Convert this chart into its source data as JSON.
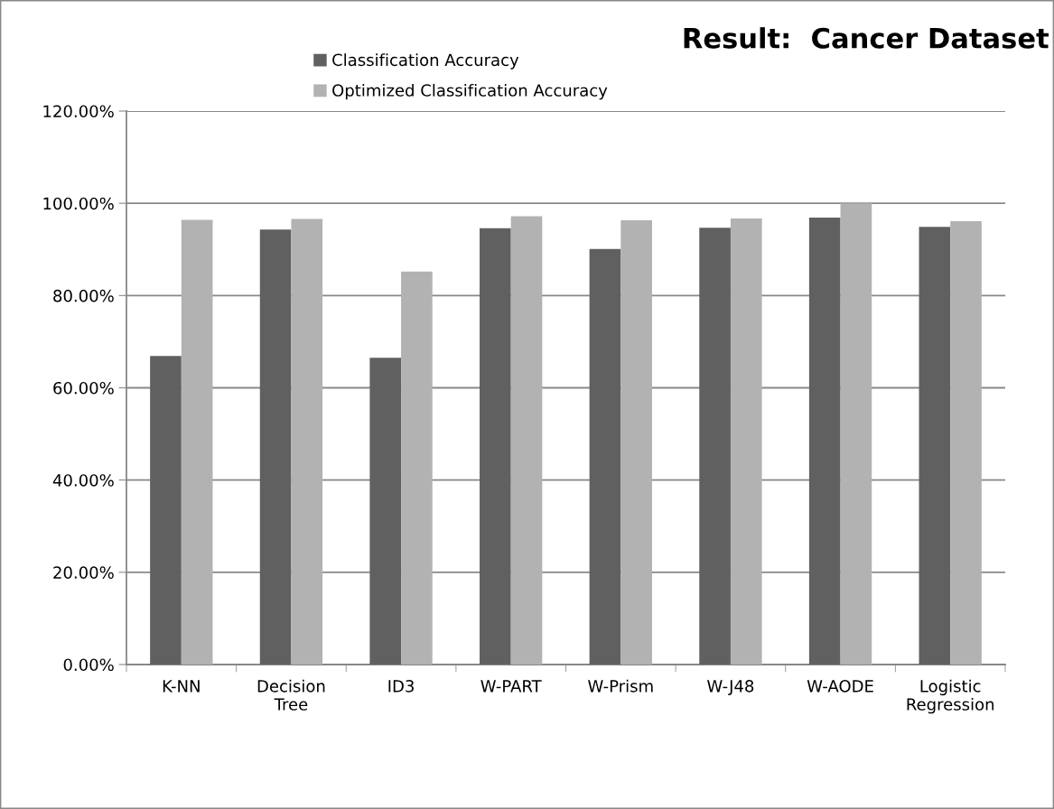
{
  "chart_data": {
    "type": "bar",
    "title": "Result:  Cancer Dataset",
    "categories": [
      "K-NN",
      "Decision\nTree",
      "ID3",
      "W-PART",
      "W-Prism",
      "W-J48",
      "W-AODE",
      "Logistic\nRegression"
    ],
    "series": [
      {
        "name": "Classification Accuracy",
        "color": "#606060",
        "values": [
          66.9,
          94.3,
          66.5,
          94.6,
          90.1,
          94.7,
          96.9,
          94.9
        ]
      },
      {
        "name": "Optimized Classification Accuracy",
        "color": "#b2b2b2",
        "values": [
          96.4,
          96.6,
          85.2,
          97.2,
          96.3,
          96.7,
          100.0,
          96.1
        ]
      }
    ],
    "ylim": [
      0,
      120
    ],
    "yticks": [
      {
        "value": 0,
        "label": "0.00%"
      },
      {
        "value": 20,
        "label": "20.00%"
      },
      {
        "value": 40,
        "label": "40.00%"
      },
      {
        "value": 60,
        "label": "60.00%"
      },
      {
        "value": 80,
        "label": "80.00%"
      },
      {
        "value": 100,
        "label": "100.00%"
      },
      {
        "value": 120,
        "label": "120.00%"
      }
    ],
    "grid": "y",
    "legend": "top left"
  }
}
